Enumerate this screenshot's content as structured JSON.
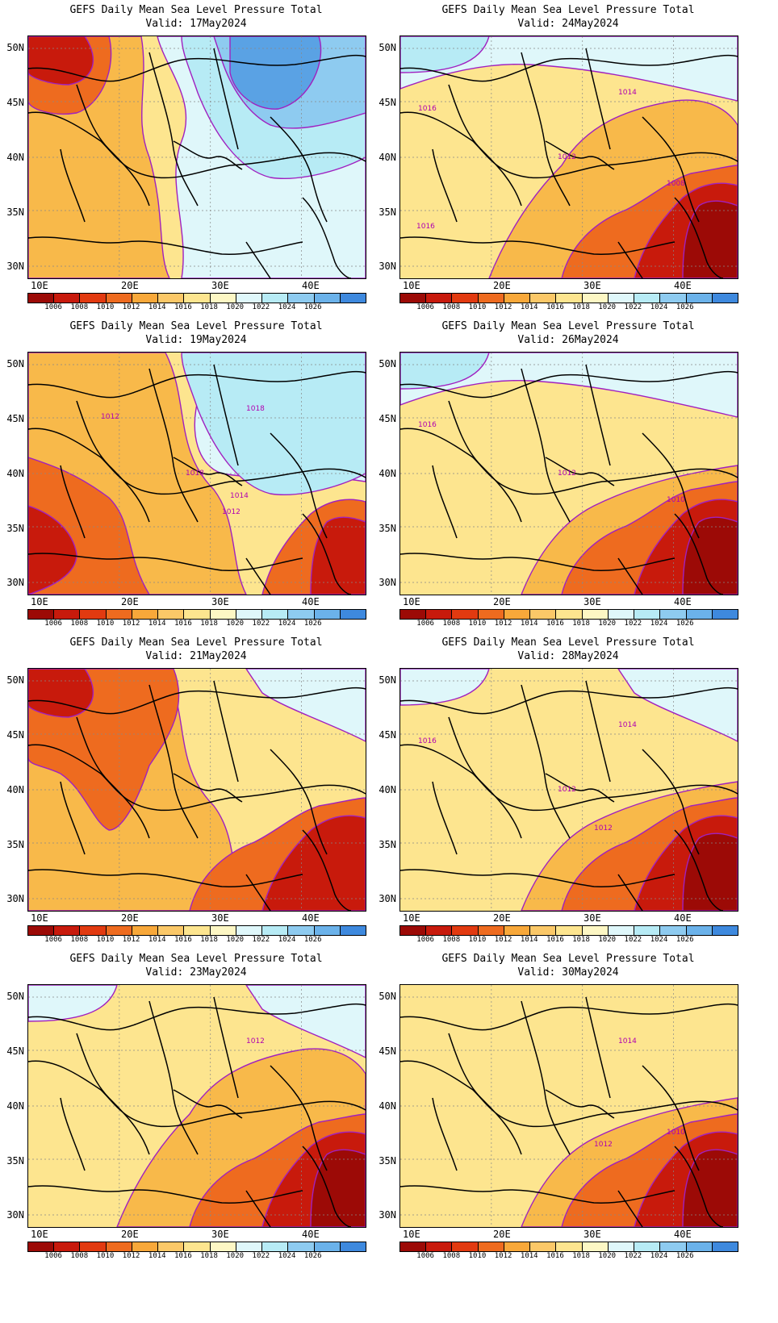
{
  "panels": [
    {
      "title": "GEFS Daily Mean Sea Level Pressure Total",
      "valid": "Valid: 17May2024",
      "background": "#fde58f",
      "blobs": [
        {
          "color": "#f8b94a",
          "shape": "west"
        },
        {
          "color": "#ee6b1f",
          "shape": "nw_small"
        },
        {
          "color": "#c81a0c",
          "shape": "nw_core"
        },
        {
          "color": "#dff7fa",
          "shape": "east_band"
        },
        {
          "color": "#b7ebf5",
          "shape": "ne_mid"
        },
        {
          "color": "#8ecbf0",
          "shape": "ne_inner"
        },
        {
          "color": "#5aa2e4",
          "shape": "ne_core"
        }
      ],
      "contour_labels": []
    },
    {
      "title": "GEFS Daily Mean Sea Level Pressure Total",
      "valid": "Valid: 24May2024",
      "background": "#fde58f",
      "blobs": [
        {
          "color": "#dff7fa",
          "shape": "north_band"
        },
        {
          "color": "#b7ebf5",
          "shape": "nw_corner"
        },
        {
          "color": "#f8b94a",
          "shape": "central"
        },
        {
          "color": "#ee6b1f",
          "shape": "se_big"
        },
        {
          "color": "#c81a0c",
          "shape": "se_mid"
        },
        {
          "color": "#9c0a06",
          "shape": "se_core"
        }
      ],
      "contour_labels": [
        {
          "text": "1016",
          "pos": "w"
        },
        {
          "text": "1014",
          "pos": "n"
        },
        {
          "text": "1012",
          "pos": "c"
        },
        {
          "text": "1008",
          "pos": "e"
        },
        {
          "text": "1016",
          "pos": "sw"
        }
      ]
    },
    {
      "title": "GEFS Daily Mean Sea Level Pressure Total",
      "valid": "Valid: 19May2024",
      "background": "#fde58f",
      "blobs": [
        {
          "color": "#f8b94a",
          "shape": "west_big"
        },
        {
          "color": "#ee6b1f",
          "shape": "sw_mid"
        },
        {
          "color": "#c81a0c",
          "shape": "sw_core"
        },
        {
          "color": "#dff7fa",
          "shape": "ne_band"
        },
        {
          "color": "#b7ebf5",
          "shape": "ne_mid"
        },
        {
          "color": "#ee6b1f",
          "shape": "se_mid"
        },
        {
          "color": "#c81a0c",
          "shape": "se_core"
        }
      ],
      "contour_labels": [
        {
          "text": "1018",
          "pos": "n"
        },
        {
          "text": "1012",
          "pos": "nw"
        },
        {
          "text": "1018",
          "pos": "c"
        },
        {
          "text": "1014",
          "pos": "c2"
        },
        {
          "text": "1012",
          "pos": "s"
        }
      ]
    },
    {
      "title": "GEFS Daily Mean Sea Level Pressure Total",
      "valid": "Valid: 26May2024",
      "background": "#fde58f",
      "blobs": [
        {
          "color": "#dff7fa",
          "shape": "north_band"
        },
        {
          "color": "#b7ebf5",
          "shape": "nw_corner"
        },
        {
          "color": "#f8b94a",
          "shape": "central_s"
        },
        {
          "color": "#ee6b1f",
          "shape": "se_big"
        },
        {
          "color": "#c81a0c",
          "shape": "se_mid"
        },
        {
          "color": "#9c0a06",
          "shape": "se_core"
        }
      ],
      "contour_labels": [
        {
          "text": "1016",
          "pos": "w"
        },
        {
          "text": "1012",
          "pos": "c"
        },
        {
          "text": "1010",
          "pos": "e"
        }
      ]
    },
    {
      "title": "GEFS Daily Mean Sea Level Pressure Total",
      "valid": "Valid: 21May2024",
      "background": "#fde58f",
      "blobs": [
        {
          "color": "#f8b94a",
          "shape": "west_big"
        },
        {
          "color": "#ee6b1f",
          "shape": "nw_mid"
        },
        {
          "color": "#c81a0c",
          "shape": "nw_core"
        },
        {
          "color": "#dff7fa",
          "shape": "ne_corner"
        },
        {
          "color": "#ee6b1f",
          "shape": "se_big"
        },
        {
          "color": "#c81a0c",
          "shape": "se_mid"
        }
      ],
      "contour_labels": []
    },
    {
      "title": "GEFS Daily Mean Sea Level Pressure Total",
      "valid": "Valid: 28May2024",
      "background": "#fde58f",
      "blobs": [
        {
          "color": "#dff7fa",
          "shape": "nw_corner"
        },
        {
          "color": "#dff7fa",
          "shape": "ne_corner"
        },
        {
          "color": "#f8b94a",
          "shape": "central_s"
        },
        {
          "color": "#ee6b1f",
          "shape": "se_big"
        },
        {
          "color": "#c81a0c",
          "shape": "se_mid"
        },
        {
          "color": "#9c0a06",
          "shape": "se_core"
        }
      ],
      "contour_labels": [
        {
          "text": "1016",
          "pos": "w"
        },
        {
          "text": "1014",
          "pos": "n"
        },
        {
          "text": "1012",
          "pos": "c"
        },
        {
          "text": "1012",
          "pos": "s"
        }
      ]
    },
    {
      "title": "GEFS Daily Mean Sea Level Pressure Total",
      "valid": "Valid: 23May2024",
      "background": "#fde58f",
      "blobs": [
        {
          "color": "#dff7fa",
          "shape": "nw_corner"
        },
        {
          "color": "#dff7fa",
          "shape": "ne_corner"
        },
        {
          "color": "#f8b94a",
          "shape": "central"
        },
        {
          "color": "#ee6b1f",
          "shape": "se_big"
        },
        {
          "color": "#c81a0c",
          "shape": "se_mid"
        },
        {
          "color": "#9c0a06",
          "shape": "se_core"
        }
      ],
      "contour_labels": [
        {
          "text": "1012",
          "pos": "n"
        }
      ]
    },
    {
      "title": "GEFS Daily Mean Sea Level Pressure Total",
      "valid": "Valid: 30May2024",
      "background": "#fde58f",
      "blobs": [
        {
          "color": "#f8b94a",
          "shape": "central_s"
        },
        {
          "color": "#ee6b1f",
          "shape": "se_big"
        },
        {
          "color": "#c81a0c",
          "shape": "se_mid"
        },
        {
          "color": "#9c0a06",
          "shape": "se_core"
        }
      ],
      "contour_labels": [
        {
          "text": "1014",
          "pos": "n"
        },
        {
          "text": "1010",
          "pos": "e"
        },
        {
          "text": "1012",
          "pos": "s"
        }
      ]
    }
  ],
  "lat_labels": [
    "50N",
    "45N",
    "40N",
    "35N",
    "30N"
  ],
  "lon_labels": [
    "10E",
    "20E",
    "30E",
    "40E"
  ],
  "colorbar": {
    "colors": [
      "#9c0a06",
      "#c81a0c",
      "#e23a10",
      "#ee6b1f",
      "#f8a83a",
      "#fbc868",
      "#fde58f",
      "#fdf7c4",
      "#dff7fa",
      "#b7ebf5",
      "#8ecbf0",
      "#6bb2ea",
      "#3e89de"
    ],
    "labels": [
      "1006",
      "1008",
      "1010",
      "1012",
      "1014",
      "1016",
      "1018",
      "1020",
      "1022",
      "1024",
      "1026"
    ]
  }
}
